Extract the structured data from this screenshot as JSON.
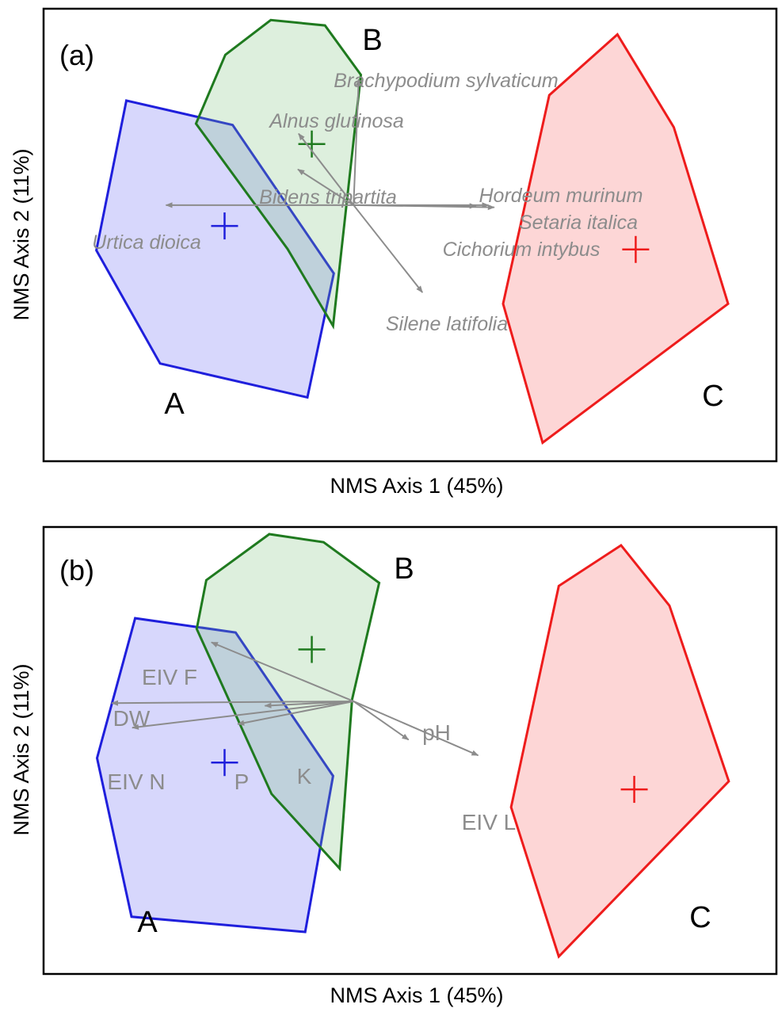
{
  "colors": {
    "A": "#1f1fdc",
    "B": "#1f7a1f",
    "C": "#ee1c1c",
    "A_fill": "rgba(110,110,245,0.28)",
    "B_fill": "rgba(120,190,120,0.25)",
    "C_fill": "rgba(250,120,120,0.30)",
    "vector": "#8c8c8c"
  },
  "chart_data": [
    {
      "type": "scatter",
      "panel_label": "(a)",
      "xlabel": "NMS Axis 1 (45%)",
      "ylabel": "NMS Axis 2 (11%)",
      "xlim": [
        0,
        100
      ],
      "ylim": [
        0,
        100
      ],
      "groups": [
        {
          "label": "A",
          "centroid": [
            24.7,
            52.0
          ],
          "hull": [
            [
              7.2,
              46.6
            ],
            [
              11.3,
              79.7
            ],
            [
              25.8,
              74.3
            ],
            [
              39.6,
              41.5
            ],
            [
              36.0,
              14.1
            ],
            [
              15.9,
              21.6
            ]
          ]
        },
        {
          "label": "B",
          "centroid": [
            36.6,
            70.1
          ],
          "hull": [
            [
              20.8,
              74.6
            ],
            [
              24.8,
              89.8
            ],
            [
              31.0,
              97.5
            ],
            [
              38.4,
              96.3
            ],
            [
              43.3,
              85.4
            ],
            [
              39.5,
              29.9
            ],
            [
              33.3,
              46.9
            ]
          ]
        },
        {
          "label": "C",
          "centroid": [
            80.8,
            46.8
          ],
          "hull": [
            [
              62.7,
              34.8
            ],
            [
              69.0,
              80.9
            ],
            [
              78.3,
              94.3
            ],
            [
              86.0,
              73.8
            ],
            [
              93.4,
              34.8
            ],
            [
              68.1,
              4.1
            ]
          ]
        }
      ],
      "vectors": {
        "origin": [
          42.3,
          56.6
        ],
        "items": [
          {
            "label": "Brachypodium sylvaticum",
            "end": [
              43.0,
              84.4
            ]
          },
          {
            "label": "Alnus glutinosa",
            "end": [
              34.8,
              72.4
            ]
          },
          {
            "label": "Bidens tripartita",
            "end": [
              34.7,
              64.5
            ]
          },
          {
            "label": "Urtica dioica",
            "end": [
              16.7,
              56.6
            ]
          },
          {
            "label": "Hordeum murinum",
            "end": [
              59.0,
              56.4
            ]
          },
          {
            "label": "Setaria italica",
            "end": [
              60.7,
              56.6
            ]
          },
          {
            "label": "Cichorium intybus",
            "end": [
              61.5,
              56.1
            ]
          },
          {
            "label": "Silene latifolia",
            "end": [
              51.7,
              37.3
            ]
          }
        ]
      }
    },
    {
      "type": "scatter",
      "panel_label": "(b)",
      "xlabel": "NMS Axis 1 (45%)",
      "ylabel": "NMS Axis 2 (11%)",
      "xlim": [
        0,
        100
      ],
      "ylim": [
        0,
        100
      ],
      "groups": [
        {
          "label": "A",
          "centroid": [
            24.7,
            47.3
          ],
          "hull": [
            [
              7.3,
              48.3
            ],
            [
              12.5,
              79.6
            ],
            [
              26.2,
              76.4
            ],
            [
              39.5,
              44.3
            ],
            [
              35.7,
              9.4
            ],
            [
              12.0,
              12.8
            ]
          ]
        },
        {
          "label": "B",
          "centroid": [
            36.6,
            72.6
          ],
          "hull": [
            [
              20.9,
              77.2
            ],
            [
              22.2,
              88.1
            ],
            [
              30.8,
              98.4
            ],
            [
              38.2,
              96.6
            ],
            [
              45.8,
              87.5
            ],
            [
              42.1,
              61.4
            ],
            [
              40.4,
              23.6
            ],
            [
              31.1,
              40.3
            ]
          ]
        },
        {
          "label": "C",
          "centroid": [
            80.6,
            41.3
          ],
          "hull": [
            [
              63.8,
              37.3
            ],
            [
              70.3,
              86.8
            ],
            [
              78.8,
              95.9
            ],
            [
              85.4,
              82.4
            ],
            [
              93.5,
              43.1
            ],
            [
              70.3,
              3.9
            ]
          ]
        }
      ],
      "vectors": {
        "origin": [
          42.3,
          61.0
        ],
        "items": [
          {
            "label": "EIV F",
            "end": [
              22.9,
              74.2
            ]
          },
          {
            "label": "DW",
            "end": [
              9.3,
              60.6
            ]
          },
          {
            "label": "EIV N",
            "end": [
              12.1,
              55.1
            ]
          },
          {
            "label": "P",
            "end": [
              26.5,
              55.9
            ]
          },
          {
            "label": "K",
            "end": [
              30.2,
              60.0
            ]
          },
          {
            "label": "pH",
            "end": [
              49.8,
              52.4
            ]
          },
          {
            "label": "EIV L",
            "end": [
              59.3,
              48.9
            ]
          }
        ]
      }
    }
  ]
}
